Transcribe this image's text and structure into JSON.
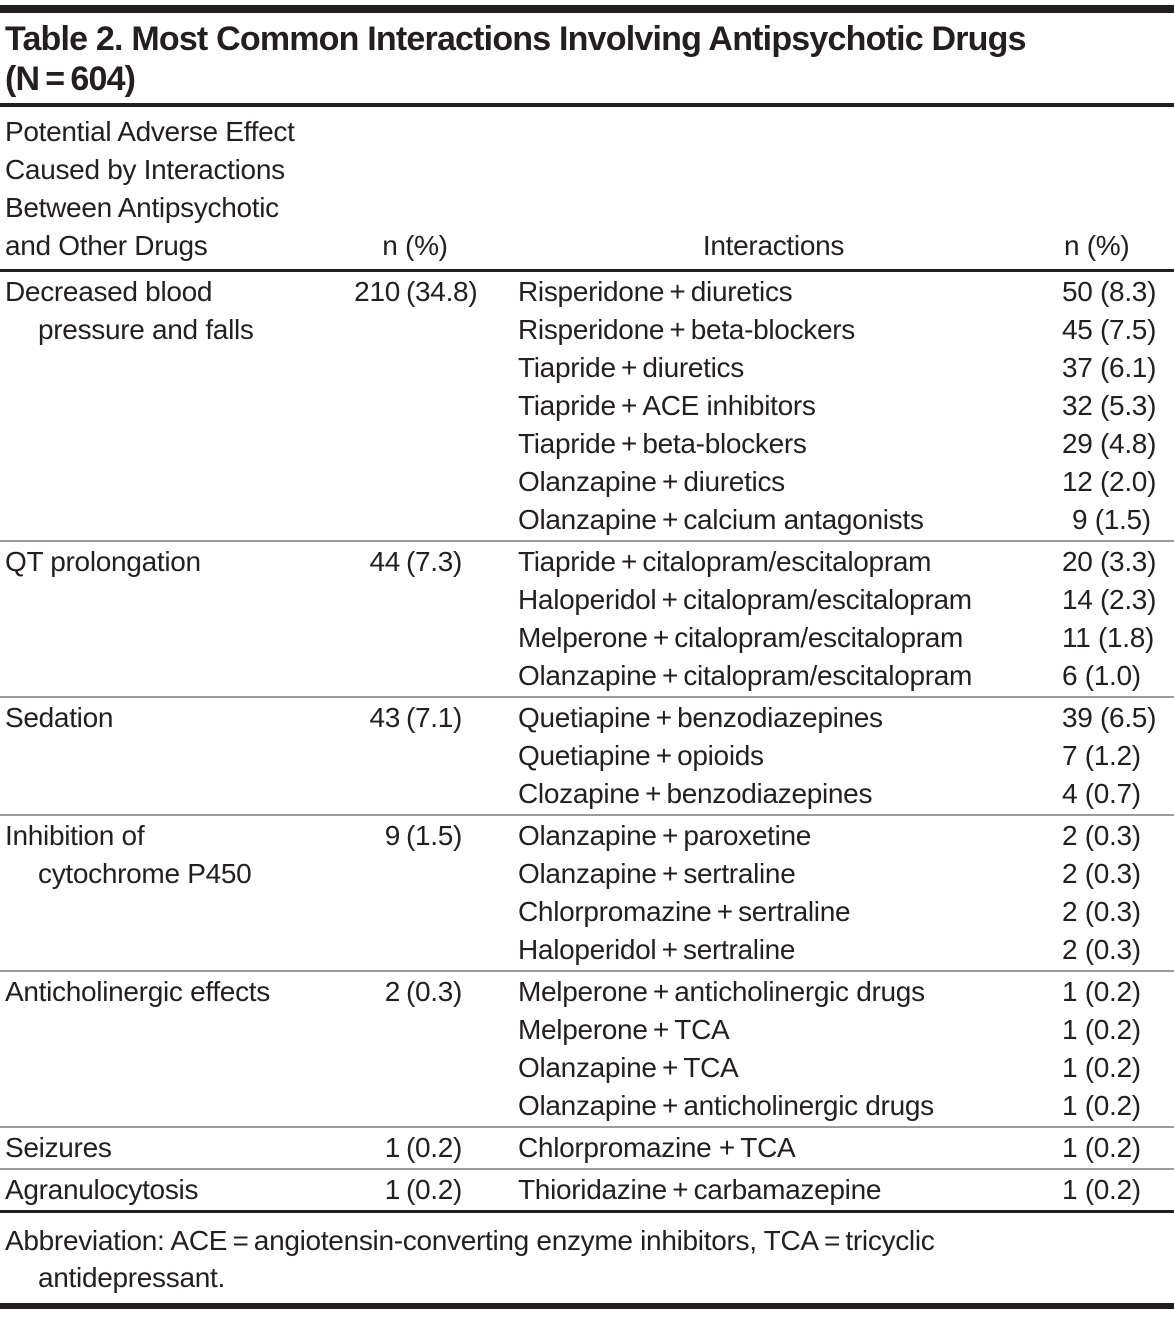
{
  "table": {
    "title_line1": "Table 2. Most Common Interactions Involving Antipsychotic Drugs",
    "title_line2": "(N = 604)",
    "columns": {
      "col1_lines": [
        "Potential Adverse Effect",
        "Caused by Interactions",
        "Between Antipsychotic",
        "and Other Drugs"
      ],
      "col2": "n (%)",
      "col3": "Interactions",
      "col4": "n (%)"
    },
    "sections": [
      {
        "effect_lines": [
          "Decreased blood",
          "pressure and falls"
        ],
        "n": "210",
        "pct": "(34.8)",
        "interactions": [
          {
            "pair": "Risperidone + diuretics",
            "value": "50 (8.3)"
          },
          {
            "pair": "Risperidone + beta-blockers",
            "value": "45 (7.5)"
          },
          {
            "pair": "Tiapride + diuretics",
            "value": "37 (6.1)"
          },
          {
            "pair": "Tiapride + ACE inhibitors",
            "value": "32 (5.3)"
          },
          {
            "pair": "Tiapride + beta-blockers",
            "value": "29 (4.8)"
          },
          {
            "pair": "Olanzapine + diuretics",
            "value": "12 (2.0)"
          },
          {
            "pair": "Olanzapine + calcium antagonists",
            "value": "9 (1.5)",
            "indent": true
          }
        ]
      },
      {
        "effect_lines": [
          "QT prolongation"
        ],
        "n": "44",
        "pct": "(7.3)",
        "interactions": [
          {
            "pair": "Tiapride + citalopram/escitalopram",
            "value": "20 (3.3)"
          },
          {
            "pair": "Haloperidol + citalopram/escitalopram",
            "value": "14 (2.3)"
          },
          {
            "pair": "Melperone + citalopram/escitalopram",
            "value": "11 (1.8)"
          },
          {
            "pair": "Olanzapine + citalopram/escitalopram",
            "value": "6 (1.0)"
          }
        ]
      },
      {
        "effect_lines": [
          "Sedation"
        ],
        "n": "43",
        "pct": "(7.1)",
        "interactions": [
          {
            "pair": "Quetiapine + benzodiazepines",
            "value": "39 (6.5)"
          },
          {
            "pair": "Quetiapine + opioids",
            "value": "7 (1.2)"
          },
          {
            "pair": "Clozapine + benzodiazepines",
            "value": "4 (0.7)"
          }
        ]
      },
      {
        "effect_lines": [
          "Inhibition of",
          "cytochrome P450"
        ],
        "n": "9",
        "pct": "(1.5)",
        "interactions": [
          {
            "pair": "Olanzapine + paroxetine",
            "value": "2 (0.3)"
          },
          {
            "pair": "Olanzapine + sertraline",
            "value": "2 (0.3)"
          },
          {
            "pair": "Chlorpromazine + sertraline",
            "value": "2 (0.3)"
          },
          {
            "pair": "Haloperidol + sertraline",
            "value": "2 (0.3)"
          }
        ]
      },
      {
        "effect_lines": [
          "Anticholinergic effects"
        ],
        "n": "2",
        "pct": "(0.3)",
        "interactions": [
          {
            "pair": "Melperone + anticholinergic drugs",
            "value": "1 (0.2)"
          },
          {
            "pair": "Melperone + TCA",
            "value": "1 (0.2)"
          },
          {
            "pair": "Olanzapine + TCA",
            "value": "1 (0.2)"
          },
          {
            "pair": "Olanzapine + anticholinergic drugs",
            "value": "1 (0.2)"
          }
        ]
      },
      {
        "effect_lines": [
          "Seizures"
        ],
        "n": "1",
        "pct": "(0.2)",
        "interactions": [
          {
            "pair": "Chlorpromazine + TCA",
            "value": "1 (0.2)"
          }
        ]
      },
      {
        "effect_lines": [
          "Agranulocytosis"
        ],
        "n": "1",
        "pct": "(0.2)",
        "interactions": [
          {
            "pair": "Thioridazine + carbamazepine",
            "value": "1 (0.2)"
          }
        ]
      }
    ],
    "footnote_line1": "Abbreviation: ACE = angiotensin-converting enzyme inhibitors, TCA = tricyclic",
    "footnote_line2": "antidepressant.",
    "colors": {
      "text": "#231f20",
      "rule_dark": "#231f20",
      "rule_light": "#9a9c9e"
    }
  }
}
